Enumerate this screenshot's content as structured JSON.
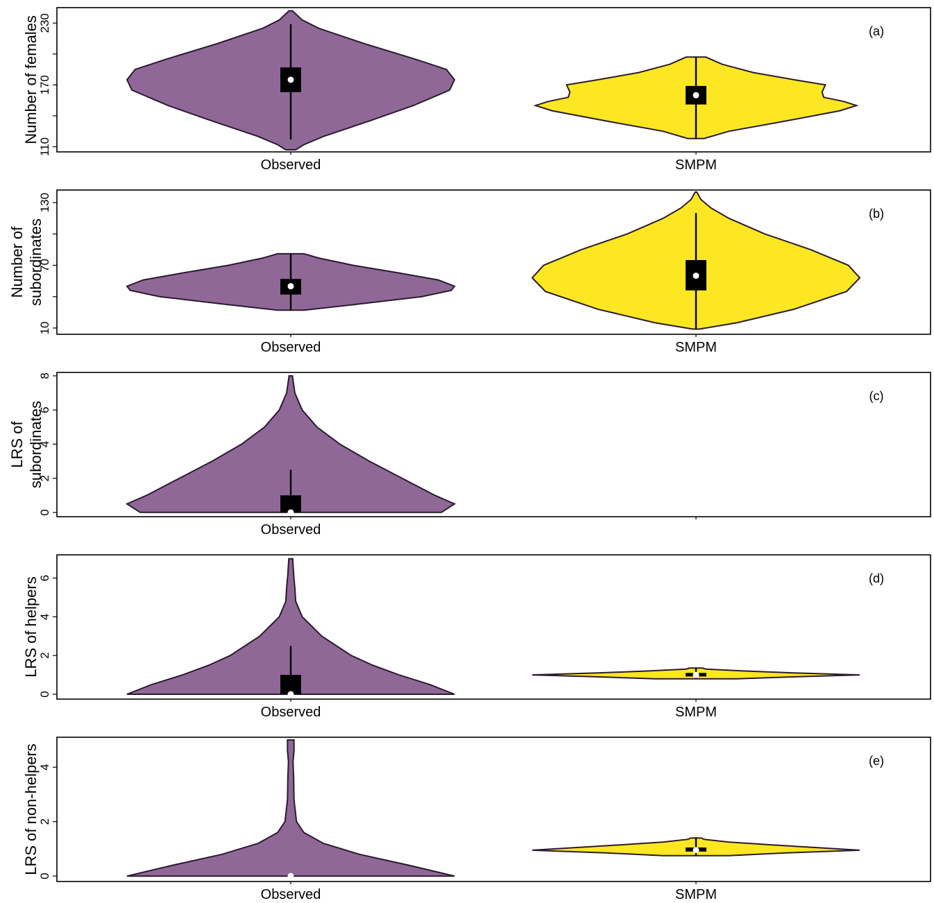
{
  "colors": {
    "observed": "#8f6898",
    "smpm": "#fce722"
  },
  "chart_data": [
    {
      "type": "violin",
      "panel": "(a)",
      "ylabel": [
        "Number of females"
      ],
      "ylim": [
        105,
        245
      ],
      "yticks": [
        110,
        140,
        170,
        200,
        230
      ],
      "ytick_labels": [
        "110",
        "",
        "170",
        "",
        "230"
      ],
      "categories": [
        "Observed",
        "SMPM"
      ],
      "series": [
        {
          "name": "Observed",
          "min": 107,
          "q1": 163,
          "median": 175,
          "q3": 187,
          "max": 242,
          "whisker_low": 117,
          "whisker_high": 229,
          "profile": [
            [
              107,
              0.03
            ],
            [
              112,
              0.08
            ],
            [
              120,
              0.2
            ],
            [
              135,
              0.48
            ],
            [
              150,
              0.75
            ],
            [
              165,
              0.97
            ],
            [
              175,
              1.0
            ],
            [
              185,
              0.95
            ],
            [
              195,
              0.76
            ],
            [
              210,
              0.45
            ],
            [
              225,
              0.17
            ],
            [
              233,
              0.07
            ],
            [
              242,
              0.01
            ]
          ]
        },
        {
          "name": "SMPM",
          "min": 118,
          "q1": 151,
          "median": 160,
          "q3": 169,
          "max": 197,
          "whisker_low": 118,
          "whisker_high": 197,
          "profile": [
            [
              118,
              0.05
            ],
            [
              125,
              0.2
            ],
            [
              135,
              0.55
            ],
            [
              145,
              0.88
            ],
            [
              150,
              0.98
            ],
            [
              154,
              0.9
            ],
            [
              158,
              0.78
            ],
            [
              163,
              0.77
            ],
            [
              170,
              0.79
            ],
            [
              175,
              0.6
            ],
            [
              182,
              0.35
            ],
            [
              190,
              0.16
            ],
            [
              197,
              0.06
            ]
          ]
        }
      ]
    },
    {
      "type": "violin",
      "panel": "(b)",
      "ylabel": [
        "Number of",
        "subordinates"
      ],
      "ylim": [
        4,
        142
      ],
      "yticks": [
        10,
        40,
        70,
        100,
        130
      ],
      "ytick_labels": [
        "10",
        "",
        "70",
        "",
        "130"
      ],
      "categories": [
        "Observed",
        "SMPM"
      ],
      "series": [
        {
          "name": "Observed",
          "min": 27,
          "q1": 42,
          "median": 50,
          "q3": 57,
          "max": 81,
          "whisker_low": 27,
          "whisker_high": 81,
          "profile": [
            [
              27,
              0.08
            ],
            [
              33,
              0.42
            ],
            [
              40,
              0.8
            ],
            [
              46,
              0.98
            ],
            [
              50,
              1.0
            ],
            [
              56,
              0.9
            ],
            [
              63,
              0.65
            ],
            [
              70,
              0.38
            ],
            [
              77,
              0.17
            ],
            [
              81,
              0.08
            ]
          ]
        },
        {
          "name": "SMPM",
          "min": 9,
          "q1": 46,
          "median": 60,
          "q3": 75,
          "max": 140,
          "whisker_low": 9,
          "whisker_high": 120,
          "profile": [
            [
              9,
              0.02
            ],
            [
              15,
              0.25
            ],
            [
              28,
              0.6
            ],
            [
              45,
              0.92
            ],
            [
              58,
              1.0
            ],
            [
              70,
              0.93
            ],
            [
              85,
              0.7
            ],
            [
              100,
              0.42
            ],
            [
              115,
              0.2
            ],
            [
              125,
              0.09
            ],
            [
              133,
              0.03
            ],
            [
              140,
              0.005
            ]
          ]
        }
      ]
    },
    {
      "type": "violin",
      "panel": "(c)",
      "ylabel": [
        "LRS of",
        "subordinates"
      ],
      "ylim": [
        -0.25,
        8.2
      ],
      "yticks": [
        0,
        2,
        4,
        6,
        8
      ],
      "ytick_labels": [
        "0",
        "2",
        "4",
        "6",
        "8"
      ],
      "categories": [
        "Observed",
        ""
      ],
      "series": [
        {
          "name": "Observed",
          "min": 0,
          "q1": 0,
          "median": 0,
          "q3": 1,
          "max": 8,
          "whisker_low": 0,
          "whisker_high": 2.5,
          "profile": [
            [
              0,
              0.92
            ],
            [
              0.5,
              1.0
            ],
            [
              1.0,
              0.88
            ],
            [
              2,
              0.68
            ],
            [
              3,
              0.48
            ],
            [
              4,
              0.3
            ],
            [
              5,
              0.16
            ],
            [
              6,
              0.07
            ],
            [
              7,
              0.025
            ],
            [
              8,
              0.01
            ]
          ]
        }
      ]
    },
    {
      "type": "violin",
      "panel": "(d)",
      "ylabel": [
        "LRS of helpers"
      ],
      "ylim": [
        -0.25,
        7.2
      ],
      "yticks": [
        0,
        2,
        4,
        6
      ],
      "ytick_labels": [
        "0",
        "2",
        "4",
        "6"
      ],
      "categories": [
        "Observed",
        "SMPM"
      ],
      "series": [
        {
          "name": "Observed",
          "min": 0,
          "q1": 0,
          "median": 0,
          "q3": 1,
          "max": 7,
          "whisker_low": 0,
          "whisker_high": 2.5,
          "profile": [
            [
              0,
              1.0
            ],
            [
              0.5,
              0.85
            ],
            [
              1.0,
              0.66
            ],
            [
              1.5,
              0.5
            ],
            [
              2.0,
              0.37
            ],
            [
              3.0,
              0.19
            ],
            [
              4.0,
              0.07
            ],
            [
              4.8,
              0.03
            ],
            [
              5.5,
              0.025
            ],
            [
              6.2,
              0.018
            ],
            [
              7.0,
              0.012
            ]
          ]
        },
        {
          "name": "SMPM",
          "min": 0.8,
          "q1": 0.95,
          "median": 1.0,
          "q3": 1.1,
          "max": 1.35,
          "whisker_low": 0.8,
          "whisker_high": 1.35,
          "profile": [
            [
              0.8,
              0.25
            ],
            [
              0.9,
              0.6
            ],
            [
              1.0,
              1.0
            ],
            [
              1.1,
              0.6
            ],
            [
              1.2,
              0.3
            ],
            [
              1.3,
              0.06
            ],
            [
              1.35,
              0.04
            ]
          ]
        }
      ]
    },
    {
      "type": "violin",
      "panel": "(e)",
      "ylabel": [
        "LRS of non-helpers"
      ],
      "ylim": [
        -0.2,
        5.1
      ],
      "yticks": [
        0,
        2,
        4
      ],
      "ytick_labels": [
        "0",
        "2",
        "4"
      ],
      "categories": [
        "Observed",
        "SMPM"
      ],
      "series": [
        {
          "name": "Observed",
          "min": 0,
          "q1": 0,
          "median": 0,
          "q3": 0,
          "max": 5,
          "whisker_low": 0,
          "whisker_high": 0,
          "profile": [
            [
              0,
              1.0
            ],
            [
              0.4,
              0.72
            ],
            [
              0.8,
              0.42
            ],
            [
              1.2,
              0.2
            ],
            [
              1.6,
              0.08
            ],
            [
              2.0,
              0.035
            ],
            [
              2.8,
              0.02
            ],
            [
              3.6,
              0.018
            ],
            [
              4.2,
              0.014
            ],
            [
              4.6,
              0.02
            ],
            [
              5.0,
              0.02
            ]
          ]
        },
        {
          "name": "SMPM",
          "min": 0.75,
          "q1": 0.9,
          "median": 0.95,
          "q3": 1.05,
          "max": 1.4,
          "whisker_low": 0.75,
          "whisker_high": 1.4,
          "profile": [
            [
              0.75,
              0.2
            ],
            [
              0.85,
              0.55
            ],
            [
              0.95,
              1.0
            ],
            [
              1.05,
              0.72
            ],
            [
              1.15,
              0.45
            ],
            [
              1.25,
              0.2
            ],
            [
              1.35,
              0.05
            ],
            [
              1.4,
              0.03
            ]
          ]
        }
      ]
    }
  ]
}
